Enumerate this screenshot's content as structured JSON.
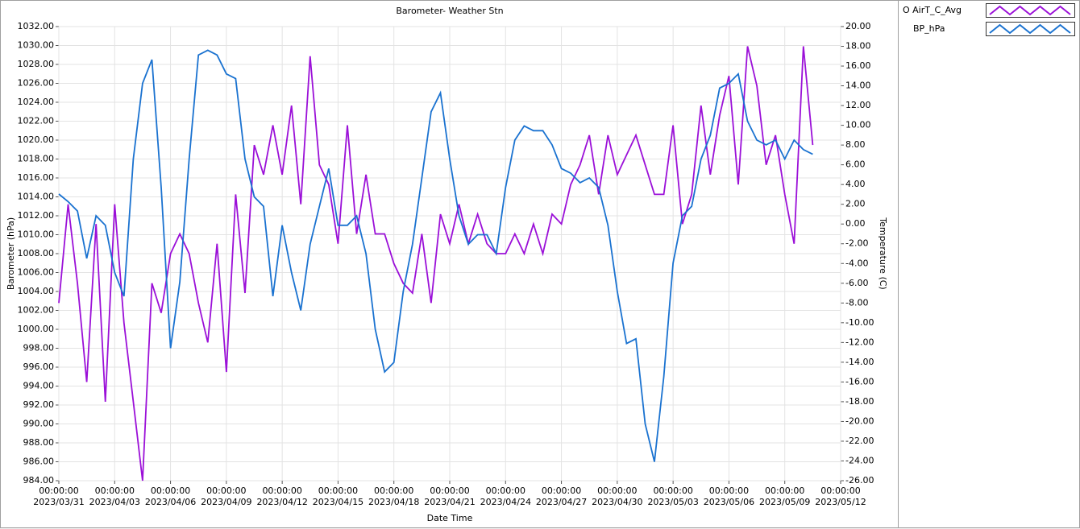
{
  "chart_data": {
    "type": "line",
    "title": "Barometer- Weather Stn",
    "x_label": "Date Time",
    "y_label": "Barometer (hPa)",
    "y2_label": "Temperature (C)",
    "grid": true,
    "x": [
      "2023/03/31 00:00:00",
      "2023/03/31 12:00:00",
      "2023/04/01 00:00:00",
      "2023/04/01 12:00:00",
      "2023/04/02 00:00:00",
      "2023/04/02 12:00:00",
      "2023/04/03 00:00:00",
      "2023/04/03 12:00:00",
      "2023/04/04 00:00:00",
      "2023/04/04 12:00:00",
      "2023/04/05 00:00:00",
      "2023/04/05 12:00:00",
      "2023/04/06 00:00:00",
      "2023/04/06 12:00:00",
      "2023/04/07 00:00:00",
      "2023/04/07 12:00:00",
      "2023/04/08 00:00:00",
      "2023/04/08 12:00:00",
      "2023/04/09 00:00:00",
      "2023/04/09 12:00:00",
      "2023/04/10 00:00:00",
      "2023/04/10 12:00:00",
      "2023/04/11 00:00:00",
      "2023/04/11 12:00:00",
      "2023/04/12 00:00:00",
      "2023/04/12 12:00:00",
      "2023/04/13 00:00:00",
      "2023/04/13 12:00:00",
      "2023/04/14 00:00:00",
      "2023/04/14 12:00:00",
      "2023/04/15 00:00:00",
      "2023/04/15 12:00:00",
      "2023/04/16 00:00:00",
      "2023/04/16 12:00:00",
      "2023/04/17 00:00:00",
      "2023/04/17 12:00:00",
      "2023/04/18 00:00:00",
      "2023/04/18 12:00:00",
      "2023/04/19 00:00:00",
      "2023/04/19 12:00:00",
      "2023/04/20 00:00:00",
      "2023/04/20 12:00:00",
      "2023/04/21 00:00:00",
      "2023/04/21 12:00:00",
      "2023/04/22 00:00:00",
      "2023/04/22 12:00:00",
      "2023/04/23 00:00:00",
      "2023/04/23 12:00:00",
      "2023/04/24 00:00:00",
      "2023/04/24 12:00:00",
      "2023/04/25 00:00:00",
      "2023/04/25 12:00:00",
      "2023/04/26 00:00:00",
      "2023/04/26 12:00:00",
      "2023/04/27 00:00:00",
      "2023/04/27 12:00:00",
      "2023/04/28 00:00:00",
      "2023/04/28 12:00:00",
      "2023/04/29 00:00:00",
      "2023/04/29 12:00:00",
      "2023/04/30 00:00:00",
      "2023/04/30 12:00:00",
      "2023/05/01 00:00:00",
      "2023/05/01 12:00:00",
      "2023/05/02 00:00:00",
      "2023/05/02 12:00:00",
      "2023/05/03 00:00:00",
      "2023/05/03 12:00:00",
      "2023/05/04 00:00:00",
      "2023/05/04 12:00:00",
      "2023/05/05 00:00:00",
      "2023/05/05 12:00:00",
      "2023/05/06 00:00:00",
      "2023/05/06 12:00:00",
      "2023/05/07 00:00:00",
      "2023/05/07 12:00:00",
      "2023/05/08 00:00:00",
      "2023/05/08 12:00:00",
      "2023/05/09 00:00:00",
      "2023/05/09 12:00:00",
      "2023/05/10 00:00:00",
      "2023/05/10 12:00:00"
    ],
    "series": [
      {
        "name": "O AirT_C_Avg",
        "color": "#9b10d8",
        "axis": "y2",
        "values": [
          -8,
          2,
          -6,
          -16,
          0,
          -18,
          2,
          -10,
          -18,
          -26,
          -6,
          -9,
          -3,
          -1,
          -3,
          -8,
          -12,
          -2,
          -15,
          3,
          -7,
          8,
          5,
          10,
          5,
          12,
          2,
          17,
          6,
          4,
          -2,
          10,
          -1,
          5,
          -1,
          -1,
          -4,
          -6,
          -7,
          -1,
          -8,
          1,
          -2,
          2,
          -2,
          1,
          -2,
          -3,
          -3,
          -1,
          -3,
          0,
          -3,
          1,
          0,
          4,
          6,
          9,
          3,
          9,
          5,
          7,
          9,
          6,
          3,
          3,
          10,
          0,
          3,
          12,
          5,
          11,
          15,
          4,
          18,
          14,
          6,
          9,
          3,
          -2,
          18,
          8
        ]
      },
      {
        "name": "BP_hPa",
        "color": "#1a72d0",
        "values": [
          1014.3,
          1013.5,
          1012.5,
          1007.5,
          1012,
          1011,
          1006,
          1003.5,
          1018,
          1026,
          1028.5,
          1015,
          998,
          1005,
          1018,
          1029,
          1029.5,
          1029,
          1027,
          1026.5,
          1018,
          1014,
          1013,
          1003.5,
          1011,
          1006,
          1002,
          1009,
          1013,
          1017,
          1011,
          1011,
          1012,
          1008,
          1000,
          995.5,
          996.5,
          1004,
          1009,
          1016,
          1023,
          1025,
          1018,
          1012,
          1009,
          1010,
          1010,
          1008,
          1015,
          1020,
          1021.5,
          1021,
          1021,
          1019.5,
          1017,
          1016.5,
          1015.5,
          1016,
          1015,
          1011,
          1004,
          998.5,
          999,
          990,
          986,
          995,
          1007,
          1012,
          1013,
          1018,
          1020.5,
          1025.5,
          1026,
          1027,
          1022,
          1020,
          1019.5,
          1020,
          1018,
          1020,
          1019,
          1018.5
        ]
      }
    ],
    "xlim": [
      "2023/03/31 00:00:00",
      "2023/05/12 00:00:00"
    ],
    "xticks": [
      {
        "value": "2023/03/31 00:00:00",
        "label": "00:00:00\n2023/03/31"
      },
      {
        "value": "2023/04/03 00:00:00",
        "label": "00:00:00\n2023/04/03"
      },
      {
        "value": "2023/04/06 00:00:00",
        "label": "00:00:00\n2023/04/06"
      },
      {
        "value": "2023/04/09 00:00:00",
        "label": "00:00:00\n2023/04/09"
      },
      {
        "value": "2023/04/12 00:00:00",
        "label": "00:00:00\n2023/04/12"
      },
      {
        "value": "2023/04/15 00:00:00",
        "label": "00:00:00\n2023/04/15"
      },
      {
        "value": "2023/04/18 00:00:00",
        "label": "00:00:00\n2023/04/18"
      },
      {
        "value": "2023/04/21 00:00:00",
        "label": "00:00:00\n2023/04/21"
      },
      {
        "value": "2023/04/24 00:00:00",
        "label": "00:00:00\n2023/04/24"
      },
      {
        "value": "2023/04/27 00:00:00",
        "label": "00:00:00\n2023/04/27"
      },
      {
        "value": "2023/04/30 00:00:00",
        "label": "00:00:00\n2023/04/30"
      },
      {
        "value": "2023/05/03 00:00:00",
        "label": "00:00:00\n2023/05/03"
      },
      {
        "value": "2023/05/06 00:00:00",
        "label": "00:00:00\n2023/05/06"
      },
      {
        "value": "2023/05/09 00:00:00",
        "label": "00:00:00\n2023/05/09"
      },
      {
        "value": "2023/05/12 00:00:00",
        "label": "00:00:00\n2023/05/12"
      }
    ],
    "ylim": [
      984,
      1032
    ],
    "yticks": [
      {
        "value": 984,
        "label": "984.00"
      },
      {
        "value": 986,
        "label": "986.00"
      },
      {
        "value": 988,
        "label": "988.00"
      },
      {
        "value": 990,
        "label": "990.00"
      },
      {
        "value": 992,
        "label": "992.00"
      },
      {
        "value": 994,
        "label": "994.00"
      },
      {
        "value": 996,
        "label": "996.00"
      },
      {
        "value": 998,
        "label": "998.00"
      },
      {
        "value": 1000,
        "label": "1000.00"
      },
      {
        "value": 1002,
        "label": "1002.00"
      },
      {
        "value": 1004,
        "label": "1004.00"
      },
      {
        "value": 1006,
        "label": "1006.00"
      },
      {
        "value": 1008,
        "label": "1008.00"
      },
      {
        "value": 1010,
        "label": "1010.00"
      },
      {
        "value": 1012,
        "label": "1012.00"
      },
      {
        "value": 1014,
        "label": "1014.00"
      },
      {
        "value": 1016,
        "label": "1016.00"
      },
      {
        "value": 1018,
        "label": "1018.00"
      },
      {
        "value": 1020,
        "label": "1020.00"
      },
      {
        "value": 1022,
        "label": "1022.00"
      },
      {
        "value": 1024,
        "label": "1024.00"
      },
      {
        "value": 1026,
        "label": "1026.00"
      },
      {
        "value": 1028,
        "label": "1028.00"
      },
      {
        "value": 1030,
        "label": "1030.00"
      },
      {
        "value": 1032,
        "label": "1032.00"
      }
    ],
    "y2lim": [
      -26,
      20
    ],
    "y2ticks": [
      {
        "value": -26,
        "label": "-26.00"
      },
      {
        "value": -24,
        "label": "-24.00"
      },
      {
        "value": -22,
        "label": "-22.00"
      },
      {
        "value": -20,
        "label": "-20.00"
      },
      {
        "value": -18,
        "label": "-18.00"
      },
      {
        "value": -16,
        "label": "-16.00"
      },
      {
        "value": -14,
        "label": "-14.00"
      },
      {
        "value": -12,
        "label": "-12.00"
      },
      {
        "value": -10,
        "label": "-10.00"
      },
      {
        "value": -8,
        "label": "-8.00"
      },
      {
        "value": -6,
        "label": "-6.00"
      },
      {
        "value": -4,
        "label": "-4.00"
      },
      {
        "value": -2,
        "label": "-2.00"
      },
      {
        "value": 0,
        "label": "0.00"
      },
      {
        "value": 2,
        "label": "2.00"
      },
      {
        "value": 4,
        "label": "4.00"
      },
      {
        "value": 6,
        "label": "6.00"
      },
      {
        "value": 8,
        "label": "8.00"
      },
      {
        "value": 10,
        "label": "10.00"
      },
      {
        "value": 12,
        "label": "12.00"
      },
      {
        "value": 14,
        "label": "14.00"
      },
      {
        "value": 16,
        "label": "16.00"
      },
      {
        "value": 18,
        "label": "18.00"
      },
      {
        "value": 20,
        "label": "20.00"
      }
    ]
  }
}
